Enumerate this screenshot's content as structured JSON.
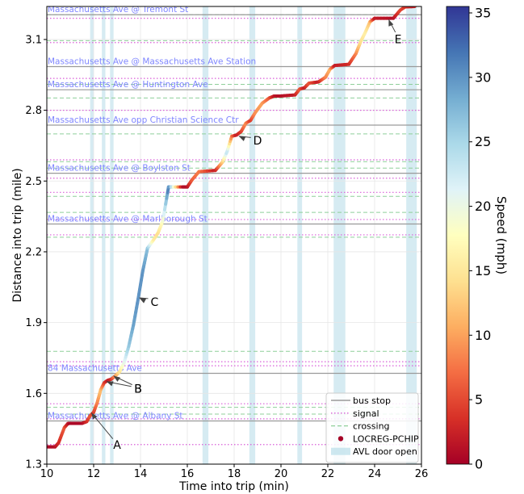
{
  "chart_data": {
    "type": "line",
    "xlabel": "Time into trip (min)",
    "ylabel": "Distance into trip (mile)",
    "xlim": [
      10,
      26
    ],
    "ylim": [
      1.3,
      3.24
    ],
    "xticks": [
      10,
      12,
      14,
      16,
      18,
      20,
      22,
      24,
      26
    ],
    "yticks": [
      1.3,
      1.6,
      1.9,
      2.2,
      2.5,
      2.8,
      3.1
    ],
    "yticks_labels": [
      "1.3",
      "1.6",
      "1.9",
      "2.2",
      "2.5",
      "2.8",
      "3.1"
    ],
    "grid": true,
    "colorbar": {
      "label": "Speed (mph)",
      "range": [
        0,
        35.5
      ],
      "ticks": [
        0,
        5,
        10,
        15,
        20,
        25,
        30,
        35
      ],
      "colormap": "RdYlBu",
      "colors": [
        "#a50026",
        "#d73027",
        "#f46d43",
        "#fdae61",
        "#fee090",
        "#ffffbf",
        "#e0f3f8",
        "#abd9e9",
        "#74add1",
        "#4575b4",
        "#313695"
      ]
    },
    "bus_stops": [
      {
        "name": "Massachusetts Ave @ Albany St",
        "distance": 1.483
      },
      {
        "name": "84 Massachusetts Ave",
        "distance": 1.685
      },
      {
        "name": "Massachusetts Ave @ Marlborough St",
        "distance": 2.318
      },
      {
        "name": "Massachusetts Ave @ Boylston St",
        "distance": 2.533
      },
      {
        "name": "Massachusetts Ave opp Christian Science Ctr",
        "distance": 2.737
      },
      {
        "name": "Massachusetts Ave @ Huntington Ave",
        "distance": 2.887
      },
      {
        "name": "Massachusetts Ave @ Massachusetts Ave Station",
        "distance": 2.985
      },
      {
        "name": "Massachusetts Ave @ Tremont St",
        "distance": 3.205
      }
    ],
    "signals": [
      1.383,
      1.492,
      1.556,
      1.717,
      1.734,
      2.272,
      2.337,
      2.452,
      2.512,
      2.59,
      2.8,
      2.935,
      3.087,
      3.19
    ],
    "crossings": [
      1.512,
      1.541,
      1.778,
      2.262,
      2.367,
      2.435,
      2.555,
      2.582,
      2.7,
      2.852,
      2.91,
      3.095,
      3.205
    ],
    "door_open_intervals": [
      [
        11.85,
        12.0
      ],
      [
        12.35,
        12.5
      ],
      [
        12.7,
        12.85
      ],
      [
        16.65,
        16.9
      ],
      [
        18.65,
        18.9
      ],
      [
        20.7,
        20.9
      ],
      [
        22.25,
        22.75
      ],
      [
        25.35,
        25.8
      ]
    ],
    "series": [
      {
        "name": "LOCREG-PCHIP",
        "x": [
          10.0,
          10.35,
          10.5,
          10.75,
          10.9,
          11.0,
          11.5,
          11.7,
          11.85,
          12.0,
          12.15,
          12.3,
          12.45,
          12.6,
          12.75,
          12.9,
          13.1,
          13.3,
          13.5,
          13.7,
          13.9,
          14.1,
          14.3,
          14.55,
          14.75,
          14.95,
          15.2,
          15.8,
          16.0,
          16.2,
          16.5,
          17.2,
          17.5,
          17.7,
          17.9,
          18.1,
          18.3,
          18.5,
          18.7,
          18.9,
          19.2,
          19.5,
          19.7,
          19.9,
          20.6,
          20.8,
          21.0,
          21.2,
          21.6,
          21.9,
          22.1,
          22.3,
          22.9,
          23.2,
          23.4,
          23.6,
          23.8,
          24.0,
          24.8,
          25.1,
          25.3,
          25.7,
          26.0
        ],
        "y": [
          1.373,
          1.373,
          1.39,
          1.455,
          1.472,
          1.473,
          1.473,
          1.48,
          1.505,
          1.52,
          1.56,
          1.615,
          1.645,
          1.655,
          1.66,
          1.672,
          1.69,
          1.73,
          1.8,
          1.89,
          2.0,
          2.12,
          2.215,
          2.25,
          2.28,
          2.33,
          2.475,
          2.475,
          2.475,
          2.505,
          2.54,
          2.545,
          2.58,
          2.625,
          2.69,
          2.695,
          2.71,
          2.745,
          2.757,
          2.79,
          2.83,
          2.852,
          2.86,
          2.86,
          2.865,
          2.89,
          2.895,
          2.915,
          2.92,
          2.94,
          2.975,
          2.99,
          2.995,
          3.04,
          3.09,
          3.13,
          3.175,
          3.19,
          3.19,
          3.225,
          3.238,
          3.24,
          3.262
        ],
        "speed": [
          0.5,
          1,
          3,
          6,
          2,
          0.5,
          0.5,
          3,
          6,
          4,
          8,
          12,
          5,
          2,
          3,
          8,
          14,
          20,
          26,
          29,
          30,
          30,
          27,
          16,
          14,
          18,
          32,
          1,
          1,
          6,
          8,
          2,
          12,
          24,
          8,
          2,
          4,
          9,
          4,
          9,
          10,
          6,
          2,
          1,
          2,
          6,
          2,
          6,
          2,
          8,
          11,
          2,
          3,
          8,
          14,
          16,
          12,
          2,
          1,
          5,
          4,
          2,
          10
        ]
      }
    ],
    "annotations": [
      {
        "label": "A",
        "text_x": 13.0,
        "text_y": 1.365,
        "point_x": 11.9,
        "point_y": 1.518
      },
      {
        "label": "B",
        "text_x": 13.9,
        "text_y": 1.602,
        "point_x": 12.55,
        "point_y": 1.65
      },
      {
        "label": "B",
        "text_x": 13.9,
        "text_y": 1.602,
        "point_x": 12.85,
        "point_y": 1.674
      },
      {
        "label": "C",
        "text_x": 14.6,
        "text_y": 1.97,
        "point_x": 13.95,
        "point_y": 2.005
      },
      {
        "label": "D",
        "text_x": 19.0,
        "text_y": 2.655,
        "point_x": 18.2,
        "point_y": 2.69
      },
      {
        "label": "E",
        "text_x": 25.0,
        "text_y": 3.085,
        "point_x": 24.6,
        "point_y": 3.185
      }
    ],
    "legend": {
      "position": "bottom-right",
      "entries": [
        {
          "label": "bus stop",
          "style": "bus-stop"
        },
        {
          "label": "signal",
          "style": "signal"
        },
        {
          "label": "crossing",
          "style": "crossing"
        },
        {
          "label": "LOCREG-PCHIP",
          "style": "marker"
        },
        {
          "label": "AVL door open",
          "style": "door-open"
        }
      ]
    }
  }
}
